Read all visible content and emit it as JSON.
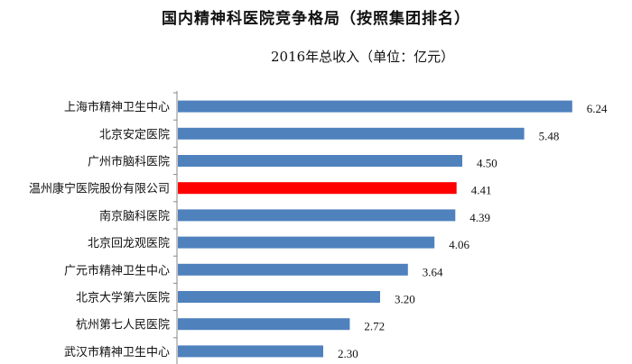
{
  "chart_data": {
    "type": "bar",
    "orientation": "horizontal",
    "title": "国内精神科医院竞争格局（按照集团排名）",
    "subtitle": "2016年总收入（单位：亿元）",
    "categories": [
      "上海市精神卫生中心",
      "北京安定医院",
      "广州市脑科医院",
      "温州康宁医院股份有限公司",
      "南京脑科医院",
      "北京回龙观医院",
      "广元市精神卫生中心",
      "北京大学第六医院",
      "杭州第七人民医院",
      "武汉市精神卫生中心"
    ],
    "values": [
      6.24,
      5.48,
      4.5,
      4.41,
      4.39,
      4.06,
      3.64,
      3.2,
      2.72,
      2.3
    ],
    "value_labels": [
      "6.24",
      "5.48",
      "4.50",
      "4.41",
      "4.39",
      "4.06",
      "3.64",
      "3.20",
      "2.72",
      "2.30"
    ],
    "highlight_index": 3,
    "colors": {
      "bar": "#4F81BD",
      "highlight": "#FF0000",
      "axis": "#888888"
    },
    "xlim": [
      0,
      6.6
    ],
    "grid": false,
    "legend": "none"
  }
}
